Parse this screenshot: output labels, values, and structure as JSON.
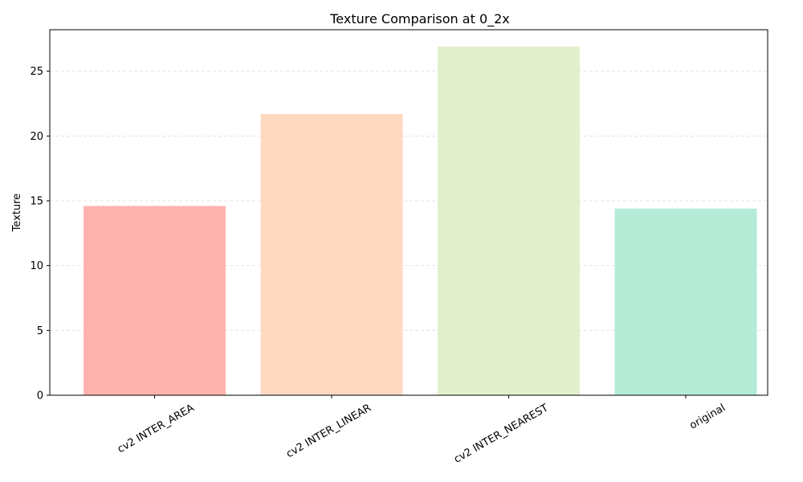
{
  "chart_data": {
    "type": "bar",
    "title": "Texture Comparison at 0_2x",
    "xlabel": "",
    "ylabel": "Texture",
    "categories": [
      "cv2 INTER_AREA",
      "cv2 INTER_LINEAR",
      "cv2 INTER_NEAREST",
      "original"
    ],
    "values": [
      14.6,
      21.7,
      26.9,
      14.4
    ],
    "colors": [
      "#ffb3ae",
      "#ffdac1",
      "#e2f0cb",
      "#b5ead7"
    ],
    "ylim": [
      0,
      28.2
    ],
    "yticks": [
      0,
      5,
      10,
      15,
      20,
      25
    ],
    "grid": "y-dashed"
  }
}
